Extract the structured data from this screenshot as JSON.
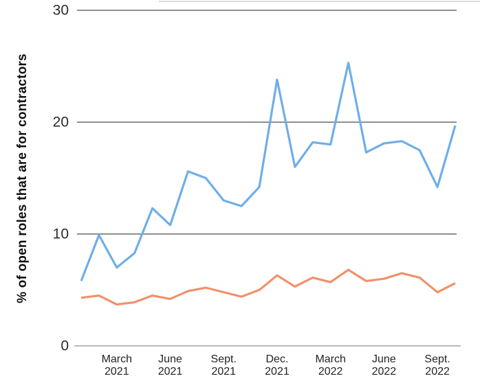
{
  "chart_data": {
    "type": "line",
    "title": "",
    "ylabel": "% of open roles that are for contractors",
    "xlabel": "",
    "ylim": [
      0,
      30
    ],
    "yticks": [
      0,
      10,
      20,
      30
    ],
    "grid": "horizontal",
    "legend": "none",
    "x": [
      "Jan. 2021",
      "Feb. 2021",
      "March 2021",
      "April 2021",
      "May 2021",
      "June 2021",
      "July 2021",
      "Aug. 2021",
      "Sept. 2021",
      "Oct. 2021",
      "Nov. 2021",
      "Dec. 2021",
      "Jan. 2022",
      "Feb. 2022",
      "March 2022",
      "April 2022",
      "May 2022",
      "June 2022",
      "July 2022",
      "Aug. 2022",
      "Sept. 2022",
      "Oct. 2022"
    ],
    "xticks": [
      {
        "index": 2,
        "line1": "March",
        "line2": "2021"
      },
      {
        "index": 5,
        "line1": "June",
        "line2": "2021"
      },
      {
        "index": 8,
        "line1": "Sept.",
        "line2": "2021"
      },
      {
        "index": 11,
        "line1": "Dec.",
        "line2": "2021"
      },
      {
        "index": 14,
        "line1": "March",
        "line2": "2022"
      },
      {
        "index": 17,
        "line1": "June",
        "line2": "2022"
      },
      {
        "index": 20,
        "line1": "Sept.",
        "line2": "2022"
      }
    ],
    "series": [
      {
        "name": "blue-line",
        "color": "#6FAEE9",
        "values": [
          5.8,
          9.9,
          7.0,
          8.3,
          12.3,
          10.8,
          15.6,
          15.0,
          13.0,
          12.5,
          14.2,
          23.8,
          16.0,
          18.2,
          18.0,
          25.3,
          17.3,
          18.1,
          18.3,
          17.5,
          14.2,
          19.7
        ]
      },
      {
        "name": "orange-line",
        "color": "#F0916B",
        "values": [
          4.3,
          4.5,
          3.7,
          3.9,
          4.5,
          4.2,
          4.9,
          5.2,
          4.8,
          4.4,
          5.0,
          6.3,
          5.3,
          6.1,
          5.7,
          6.8,
          5.8,
          6.0,
          6.5,
          6.1,
          4.8,
          5.6
        ]
      }
    ],
    "axis_colors": {
      "gridline": "#4a4a4a",
      "baseline": "#8f8f8f",
      "tick_text": "#2b2b2b",
      "top_hairline": "#c6c6c6"
    }
  }
}
